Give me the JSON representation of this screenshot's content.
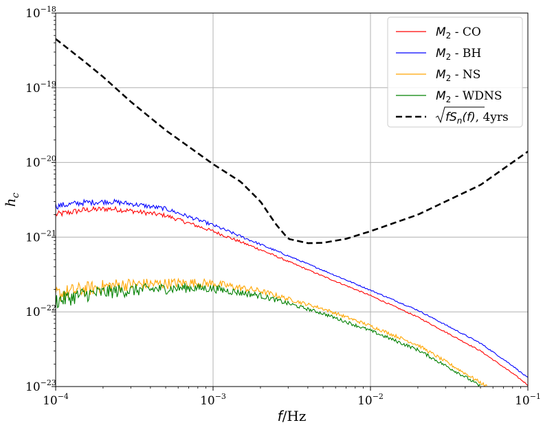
{
  "chart_data": {
    "type": "line",
    "xlabel": "f/Hz",
    "ylabel": "h_c",
    "xscale": "log",
    "yscale": "log",
    "xlim": [
      0.0001,
      0.1
    ],
    "ylim": [
      1e-23,
      1e-18
    ],
    "grid": true,
    "legend_position": "top-right",
    "x_ticks": [
      {
        "base": "10",
        "exp": "−4"
      },
      {
        "base": "10",
        "exp": "−3"
      },
      {
        "base": "10",
        "exp": "−2"
      },
      {
        "base": "10",
        "exp": "−1"
      }
    ],
    "y_ticks": [
      {
        "base": "10",
        "exp": "−23"
      },
      {
        "base": "10",
        "exp": "−22"
      },
      {
        "base": "10",
        "exp": "−21"
      },
      {
        "base": "10",
        "exp": "−20"
      },
      {
        "base": "10",
        "exp": "−19"
      },
      {
        "base": "10",
        "exp": "−18"
      }
    ],
    "series": [
      {
        "name": "M_2 - CO",
        "legend_main": "M",
        "legend_sub": "2",
        "legend_suffix": " - CO",
        "color": "#ff0000",
        "style": "solid",
        "noise": 0.035,
        "points": [
          [
            0.0001,
            2e-21
          ],
          [
            0.00015,
            2.3e-21
          ],
          [
            0.00022,
            2.4e-21
          ],
          [
            0.0003,
            2.25e-21
          ],
          [
            0.0005,
            1.95e-21
          ],
          [
            0.001,
            1.2e-21
          ],
          [
            0.002,
            6.8e-22
          ],
          [
            0.005,
            3e-22
          ],
          [
            0.01,
            1.65e-22
          ],
          [
            0.02,
            8.5e-23
          ],
          [
            0.05,
            3e-23
          ],
          [
            0.08,
            1.5e-23
          ],
          [
            0.1,
            1.05e-23
          ]
        ]
      },
      {
        "name": "M_2 - BH",
        "legend_main": "M",
        "legend_sub": "2",
        "legend_suffix": " - BH",
        "color": "#0000ff",
        "style": "solid",
        "noise": 0.035,
        "points": [
          [
            0.0001,
            2.6e-21
          ],
          [
            0.00015,
            2.9e-21
          ],
          [
            0.00022,
            3e-21
          ],
          [
            0.0003,
            2.8e-21
          ],
          [
            0.0005,
            2.4e-21
          ],
          [
            0.001,
            1.45e-21
          ],
          [
            0.002,
            8e-22
          ],
          [
            0.005,
            3.6e-22
          ],
          [
            0.01,
            1.95e-22
          ],
          [
            0.02,
            1.05e-22
          ],
          [
            0.05,
            3.8e-23
          ],
          [
            0.08,
            1.9e-23
          ],
          [
            0.1,
            1.3e-23
          ]
        ]
      },
      {
        "name": "M_2 - NS",
        "legend_main": "M",
        "legend_sub": "2",
        "legend_suffix": " - NS",
        "color": "#ffa500",
        "style": "solid",
        "noise": 0.09,
        "points": [
          [
            0.0001,
            1.7e-22
          ],
          [
            0.00015,
            2e-22
          ],
          [
            0.00025,
            2.3e-22
          ],
          [
            0.0004,
            2.35e-22
          ],
          [
            0.0007,
            2.45e-22
          ],
          [
            0.001,
            2.4e-22
          ],
          [
            0.002,
            1.9e-22
          ],
          [
            0.005,
            1.1e-22
          ],
          [
            0.01,
            6.5e-23
          ],
          [
            0.02,
            3.6e-23
          ],
          [
            0.04,
            1.5e-23
          ],
          [
            0.055,
            1e-23
          ]
        ]
      },
      {
        "name": "M_2 - WDNS",
        "legend_main": "M",
        "legend_sub": "2",
        "legend_suffix": " - WDNS",
        "color": "#008000",
        "style": "solid",
        "noise": 0.09,
        "points": [
          [
            0.0001,
            1.4e-22
          ],
          [
            0.00015,
            1.7e-22
          ],
          [
            0.00025,
            1.9e-22
          ],
          [
            0.0004,
            2e-22
          ],
          [
            0.0007,
            2.1e-22
          ],
          [
            0.001,
            2.05e-22
          ],
          [
            0.002,
            1.65e-22
          ],
          [
            0.005,
            9.5e-23
          ],
          [
            0.01,
            5.6e-23
          ],
          [
            0.02,
            3.1e-23
          ],
          [
            0.04,
            1.35e-23
          ],
          [
            0.05,
            1e-23
          ]
        ]
      },
      {
        "name": "√(fS_n(f)), 4yrs",
        "legend_suffix": ", 4yrs",
        "color": "#000000",
        "style": "dashed",
        "noise": 0,
        "points": [
          [
            0.0001,
            4.5e-19
          ],
          [
            0.00015,
            2.3e-19
          ],
          [
            0.0002,
            1.4e-19
          ],
          [
            0.0003,
            6.5e-20
          ],
          [
            0.0005,
            2.7e-20
          ],
          [
            0.001,
            9.5e-21
          ],
          [
            0.0015,
            5.5e-21
          ],
          [
            0.002,
            3e-21
          ],
          [
            0.0025,
            1.5e-21
          ],
          [
            0.003,
            9.5e-22
          ],
          [
            0.004,
            8.3e-22
          ],
          [
            0.005,
            8.4e-22
          ],
          [
            0.007,
            9.5e-22
          ],
          [
            0.01,
            1.2e-21
          ],
          [
            0.02,
            2e-21
          ],
          [
            0.05,
            5e-21
          ],
          [
            0.1,
            1.4e-20
          ]
        ]
      }
    ]
  }
}
